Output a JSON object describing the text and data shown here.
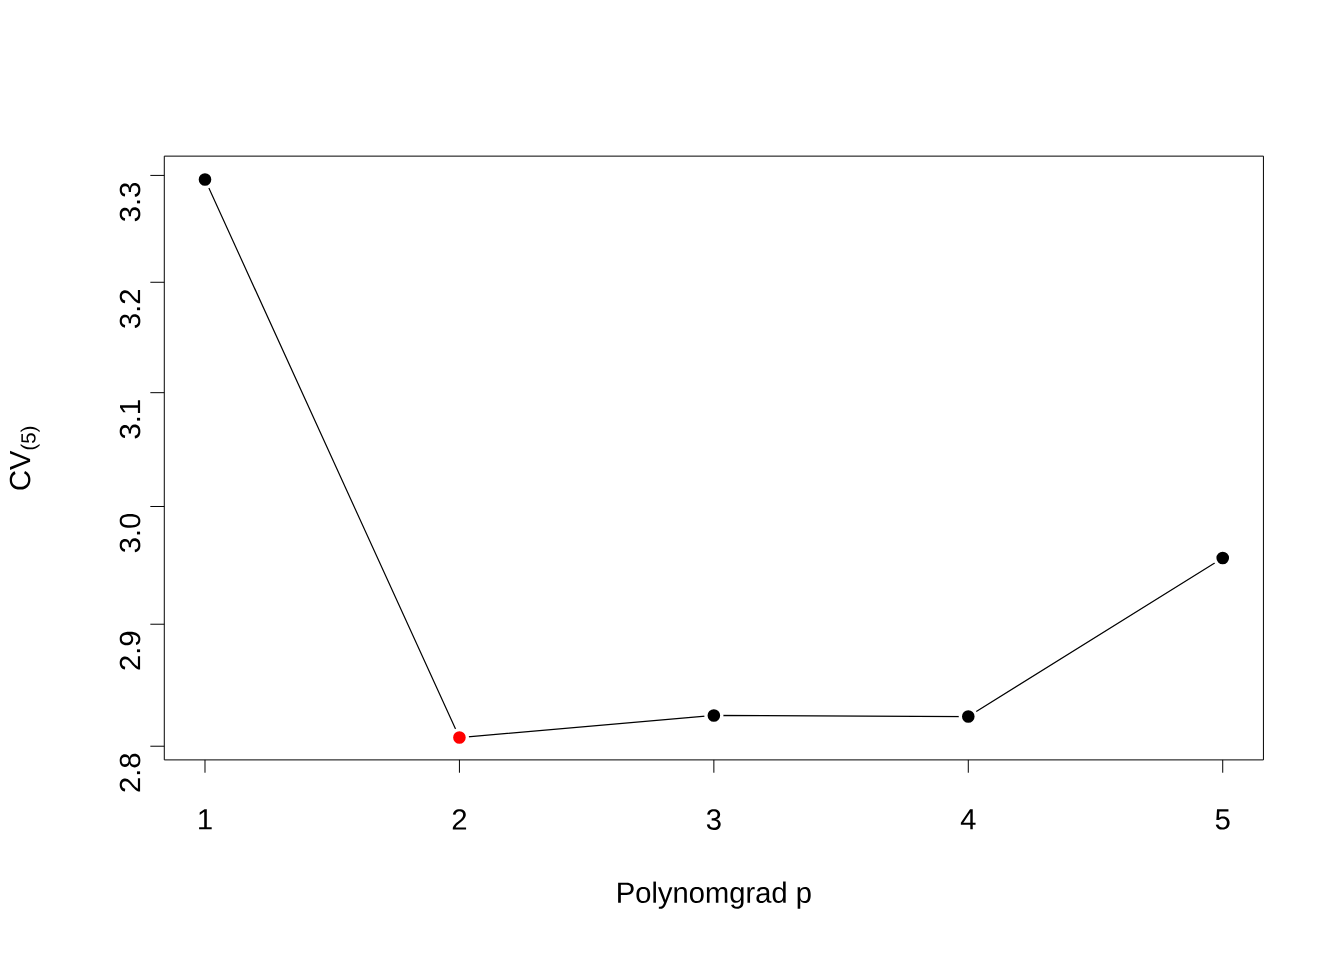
{
  "chart_data": {
    "type": "line",
    "xlabel": "Polynomgrad p",
    "ylabel": "CV$_{(5)}$",
    "x": [
      1,
      2,
      3,
      4,
      5
    ],
    "series": [
      {
        "color": "#000000",
        "colors": [
          "#000000",
          "#ff0000",
          "#000000",
          "#000000",
          "#000000"
        ],
        "values": [
          3.296,
          2.807,
          2.825,
          2.824,
          2.956
        ]
      }
    ],
    "xlim": [
      0.84,
      5.16
    ],
    "ylim": [
      2.789,
      3.318
    ],
    "xticks": [
      1,
      2,
      3,
      4,
      5
    ],
    "yticks": [
      2.8,
      2.9,
      {
        "value": 3,
        "label": "3.0"
      },
      3.1,
      3.2,
      3.3
    ],
    "log": "y",
    "marker": "circle",
    "line_style": "solid"
  }
}
